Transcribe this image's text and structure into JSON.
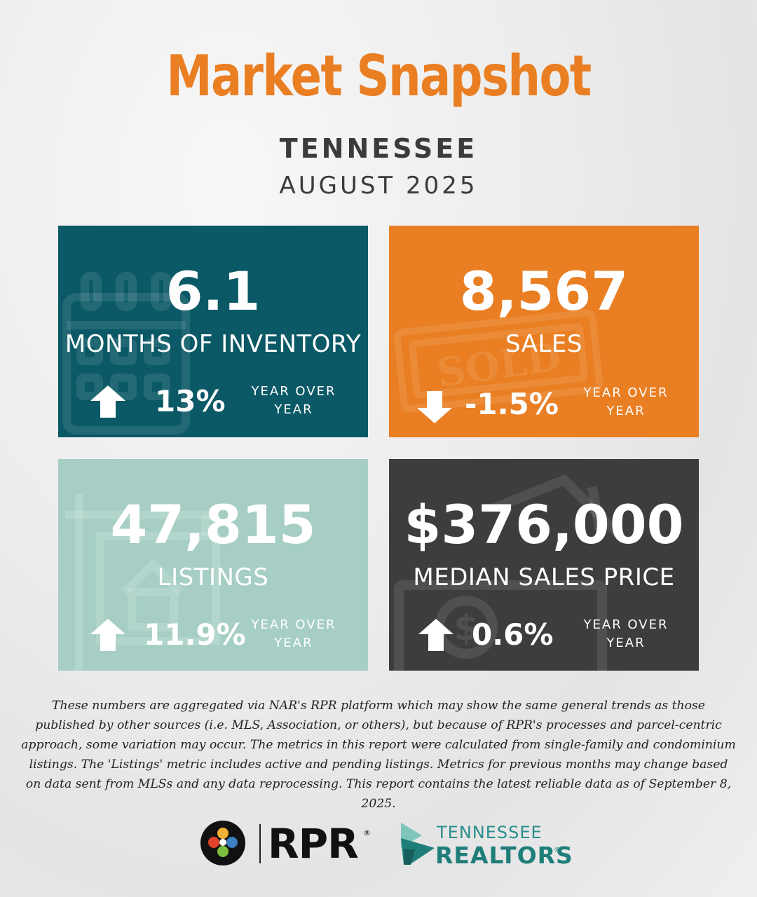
{
  "header": {
    "title": "Market Snapshot",
    "state": "TENNESSEE",
    "period": "AUGUST 2025"
  },
  "metrics": [
    {
      "value": "6.1",
      "label": "MONTHS OF INVENTORY",
      "change": "13%",
      "direction": "up",
      "comparison_line1": "YEAR OVER",
      "comparison_line2": "YEAR",
      "background_icon": "calendar-icon",
      "color": "#0b5966"
    },
    {
      "value": "8,567",
      "label": "SALES",
      "change": "-1.5%",
      "direction": "down",
      "comparison_line1": "YEAR OVER",
      "comparison_line2": "YEAR",
      "background_icon": "sold-stamp-icon",
      "color": "#e97e22"
    },
    {
      "value": "47,815",
      "label": "LISTINGS",
      "change": "11.9%",
      "direction": "up",
      "comparison_line1": "YEAR OVER",
      "comparison_line2": "YEAR",
      "background_icon": "for-sale-sign-icon",
      "color": "#a6cec4"
    },
    {
      "value": "$376,000",
      "label": "MEDIAN SALES PRICE",
      "change": "0.6%",
      "direction": "up",
      "comparison_line1": "YEAR OVER",
      "comparison_line2": "YEAR",
      "background_icon": "money-house-icon",
      "color": "#3b3e3d"
    }
  ],
  "disclaimer": "These numbers are aggregated via NAR's RPR platform which may show the same general trends as those published by other sources (i.e. MLS, Association, or others), but because of RPR's processes and parcel-centric approach, some variation may occur. The metrics in this report were calculated from single-family and condominium listings. The 'Listings' metric includes active and pending listings. Metrics for previous months may change based on data sent from MLSs and any data reprocessing. This report contains the latest reliable data as of September 8, 2025.",
  "logos": {
    "rpr_text": "RPR",
    "tn_realtors_top": "TENNESSEE",
    "tn_realtors_bottom": "REALTORS"
  },
  "colors": {
    "title": "#e97e22",
    "heading_text": "#3b3b3b"
  }
}
